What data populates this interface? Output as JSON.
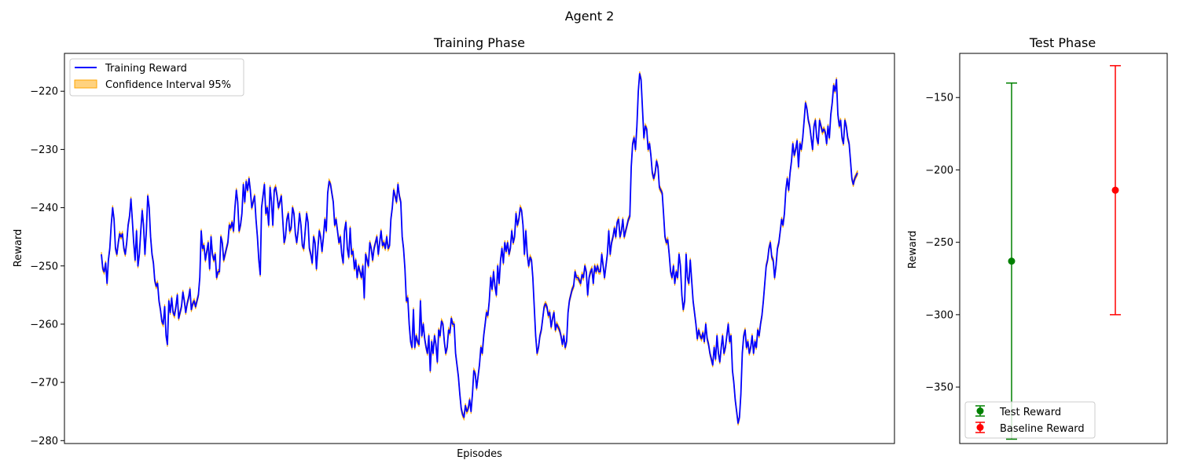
{
  "figure": {
    "suptitle": "Agent 2"
  },
  "colors": {
    "training_line": "#0000ff",
    "confidence_fill": "#ffa500",
    "test_reward": "#008000",
    "baseline_reward": "#ff0000"
  },
  "chart_data": [
    {
      "type": "line",
      "title": "Training Phase",
      "xlabel": "Episodes",
      "ylabel": "Reward",
      "x_ticks_visible": false,
      "ylim": [
        -280.5,
        -213.5
      ],
      "yticks": [
        -280,
        -270,
        -260,
        -250,
        -240,
        -230,
        -220
      ],
      "ytick_labels": [
        "−280",
        "−270",
        "−260",
        "−250",
        "−240",
        "−230",
        "−220"
      ],
      "grid": false,
      "legend_position": "upper-left",
      "legend": [
        "Training Reward",
        "Confidence Interval 95%"
      ],
      "series": [
        {
          "name": "Training Reward",
          "style": "line",
          "values": [
            -248,
            -250.5,
            -251,
            -249.5,
            -253,
            -249,
            -247,
            -243,
            -240,
            -242,
            -247,
            -248,
            -246,
            -244.5,
            -245,
            -244.5,
            -247,
            -248,
            -246,
            -243,
            -241.5,
            -238.5,
            -242,
            -246,
            -249,
            -244,
            -250,
            -248,
            -244,
            -240.5,
            -243,
            -248,
            -244,
            -238,
            -240,
            -245,
            -248,
            -249.5,
            -252.5,
            -253.5,
            -253,
            -256,
            -257.5,
            -259.5,
            -260,
            -257,
            -262,
            -263.5,
            -256,
            -258,
            -255.5,
            -258,
            -258.5,
            -257,
            -255,
            -259,
            -258,
            -257,
            -254.5,
            -256,
            -258,
            -256.5,
            -255.5,
            -254,
            -257.5,
            -256.5,
            -256,
            -257,
            -256,
            -255,
            -252,
            -244,
            -247,
            -246.5,
            -249,
            -247.5,
            -246,
            -250.5,
            -245,
            -248,
            -249,
            -248,
            -252,
            -251,
            -251,
            -245,
            -246,
            -249,
            -248,
            -247,
            -246,
            -243,
            -243.5,
            -242.5,
            -244,
            -240,
            -237,
            -239,
            -244,
            -243,
            -241,
            -236,
            -239,
            -235.5,
            -237,
            -235,
            -237,
            -240,
            -239,
            -238,
            -242,
            -245,
            -249,
            -251.5,
            -240,
            -238,
            -236,
            -241,
            -240,
            -243,
            -236.5,
            -239,
            -243,
            -237,
            -236.5,
            -238,
            -240,
            -239,
            -238,
            -242,
            -246,
            -245,
            -242,
            -241,
            -244,
            -243.5,
            -240,
            -241,
            -244.5,
            -246,
            -244,
            -241,
            -243,
            -246.5,
            -247,
            -244,
            -241,
            -242.5,
            -247,
            -248,
            -249.5,
            -245,
            -246,
            -250.5,
            -247,
            -244,
            -245,
            -247.5,
            -245,
            -242,
            -244,
            -237.5,
            -235.5,
            -236,
            -237.5,
            -239,
            -243,
            -242,
            -244,
            -246,
            -245,
            -248,
            -249.5,
            -244,
            -242.5,
            -247,
            -248.5,
            -243.5,
            -248,
            -247.5,
            -250.5,
            -249,
            -252,
            -250,
            -251,
            -252,
            -250,
            -255.5,
            -248,
            -249,
            -250,
            -246,
            -247,
            -249,
            -247,
            -246,
            -245,
            -248,
            -246,
            -244,
            -246.5,
            -246,
            -247,
            -245,
            -247,
            -246.5,
            -242,
            -240,
            -237,
            -238,
            -239,
            -236,
            -238,
            -239,
            -245,
            -247,
            -250.5,
            -256,
            -255.5,
            -260,
            -263,
            -264,
            -257.5,
            -264,
            -262,
            -263,
            -263.5,
            -256,
            -262,
            -260,
            -262.5,
            -264,
            -265,
            -262,
            -268,
            -263,
            -265,
            -262,
            -263.5,
            -266.5,
            -261,
            -262,
            -259.5,
            -260,
            -263,
            -265,
            -264,
            -261,
            -261.5,
            -259,
            -260,
            -260,
            -265,
            -267,
            -269,
            -272,
            -274.5,
            -275.5,
            -276,
            -274,
            -275,
            -274.5,
            -273,
            -275,
            -272,
            -268,
            -268.5,
            -271,
            -269,
            -267,
            -264,
            -265,
            -262,
            -260,
            -258,
            -258.5,
            -256,
            -252,
            -254,
            -251,
            -253.5,
            -255,
            -250,
            -253,
            -249,
            -247,
            -249.5,
            -246,
            -247.5,
            -246,
            -248,
            -247,
            -244,
            -246,
            -245,
            -241,
            -243,
            -242,
            -240,
            -240.5,
            -243,
            -248,
            -244,
            -248,
            -250,
            -248.5,
            -249,
            -252,
            -257,
            -262,
            -265,
            -264,
            -262,
            -261,
            -259,
            -257,
            -256.5,
            -257,
            -258.5,
            -258,
            -260.5,
            -259,
            -258,
            -261,
            -260,
            -260.5,
            -261,
            -262,
            -263.5,
            -262,
            -264,
            -263,
            -258,
            -256,
            -255,
            -254,
            -253.5,
            -251,
            -252,
            -252,
            -252.5,
            -253,
            -251.5,
            -252,
            -250,
            -251,
            -255,
            -252,
            -251,
            -250.5,
            -253,
            -250,
            -251,
            -250,
            -251,
            -251,
            -248,
            -250,
            -252,
            -250,
            -248,
            -244,
            -248,
            -246,
            -245,
            -243.5,
            -245,
            -242.5,
            -242,
            -245,
            -244,
            -242,
            -245,
            -244,
            -243,
            -242,
            -241.5,
            -233,
            -229,
            -228,
            -230,
            -226,
            -220,
            -217,
            -218,
            -223,
            -228,
            -226,
            -226.5,
            -230,
            -229,
            -231,
            -234,
            -235,
            -234,
            -232,
            -233,
            -236.5,
            -237,
            -237.5,
            -241,
            -245,
            -246,
            -245.5,
            -248,
            -251,
            -252,
            -250,
            -253,
            -251,
            -252,
            -248,
            -250,
            -255,
            -257.5,
            -256,
            -248,
            -252,
            -253,
            -249,
            -252.5,
            -256,
            -258,
            -260,
            -262.5,
            -261,
            -262,
            -262.5,
            -261.5,
            -263,
            -260,
            -262.5,
            -263.5,
            -265,
            -266,
            -267,
            -264,
            -266,
            -262,
            -265,
            -266.5,
            -264,
            -262,
            -265,
            -264,
            -262,
            -260,
            -263,
            -262,
            -268,
            -270,
            -273,
            -275,
            -277,
            -276,
            -272,
            -265,
            -262,
            -261,
            -264,
            -263,
            -265,
            -264,
            -262,
            -265,
            -263,
            -264,
            -261,
            -262,
            -260,
            -258.5,
            -256,
            -253,
            -250,
            -249,
            -247,
            -246,
            -248.5,
            -249,
            -252,
            -250,
            -247,
            -246,
            -244,
            -242,
            -243,
            -241,
            -237,
            -235,
            -237,
            -234,
            -232,
            -229,
            -231,
            -230,
            -228.5,
            -233,
            -229,
            -230,
            -228,
            -225,
            -222,
            -223,
            -225,
            -226,
            -228,
            -230,
            -226,
            -225,
            -228,
            -229,
            -225,
            -226,
            -227,
            -226.5,
            -227,
            -229,
            -226,
            -228,
            -224,
            -222,
            -219,
            -220,
            -218,
            -224,
            -226,
            -225,
            -228,
            -229,
            -225,
            -226,
            -228,
            -229,
            -232,
            -235,
            -236,
            -235,
            -234.5,
            -234
          ]
        },
        {
          "name": "Confidence Interval 95%",
          "style": "band",
          "half_width": 0.4
        }
      ]
    },
    {
      "type": "scatter",
      "title": "Test Phase",
      "ylabel": "Reward",
      "x_ticks_visible": false,
      "xlim": [
        -0.5,
        1.5
      ],
      "ylim": [
        -389,
        -119.5
      ],
      "yticks": [
        -350,
        -300,
        -250,
        -200,
        -150
      ],
      "ytick_labels": [
        "−350",
        "−300",
        "−250",
        "−200",
        "−150"
      ],
      "grid": false,
      "legend_position": "lower-left",
      "legend": [
        "Test Reward",
        "Baseline Reward"
      ],
      "series": [
        {
          "name": "Test Reward",
          "x": 0,
          "y": -263,
          "error": 123
        },
        {
          "name": "Baseline Reward",
          "x": 1,
          "y": -214,
          "error": 86
        }
      ]
    }
  ]
}
